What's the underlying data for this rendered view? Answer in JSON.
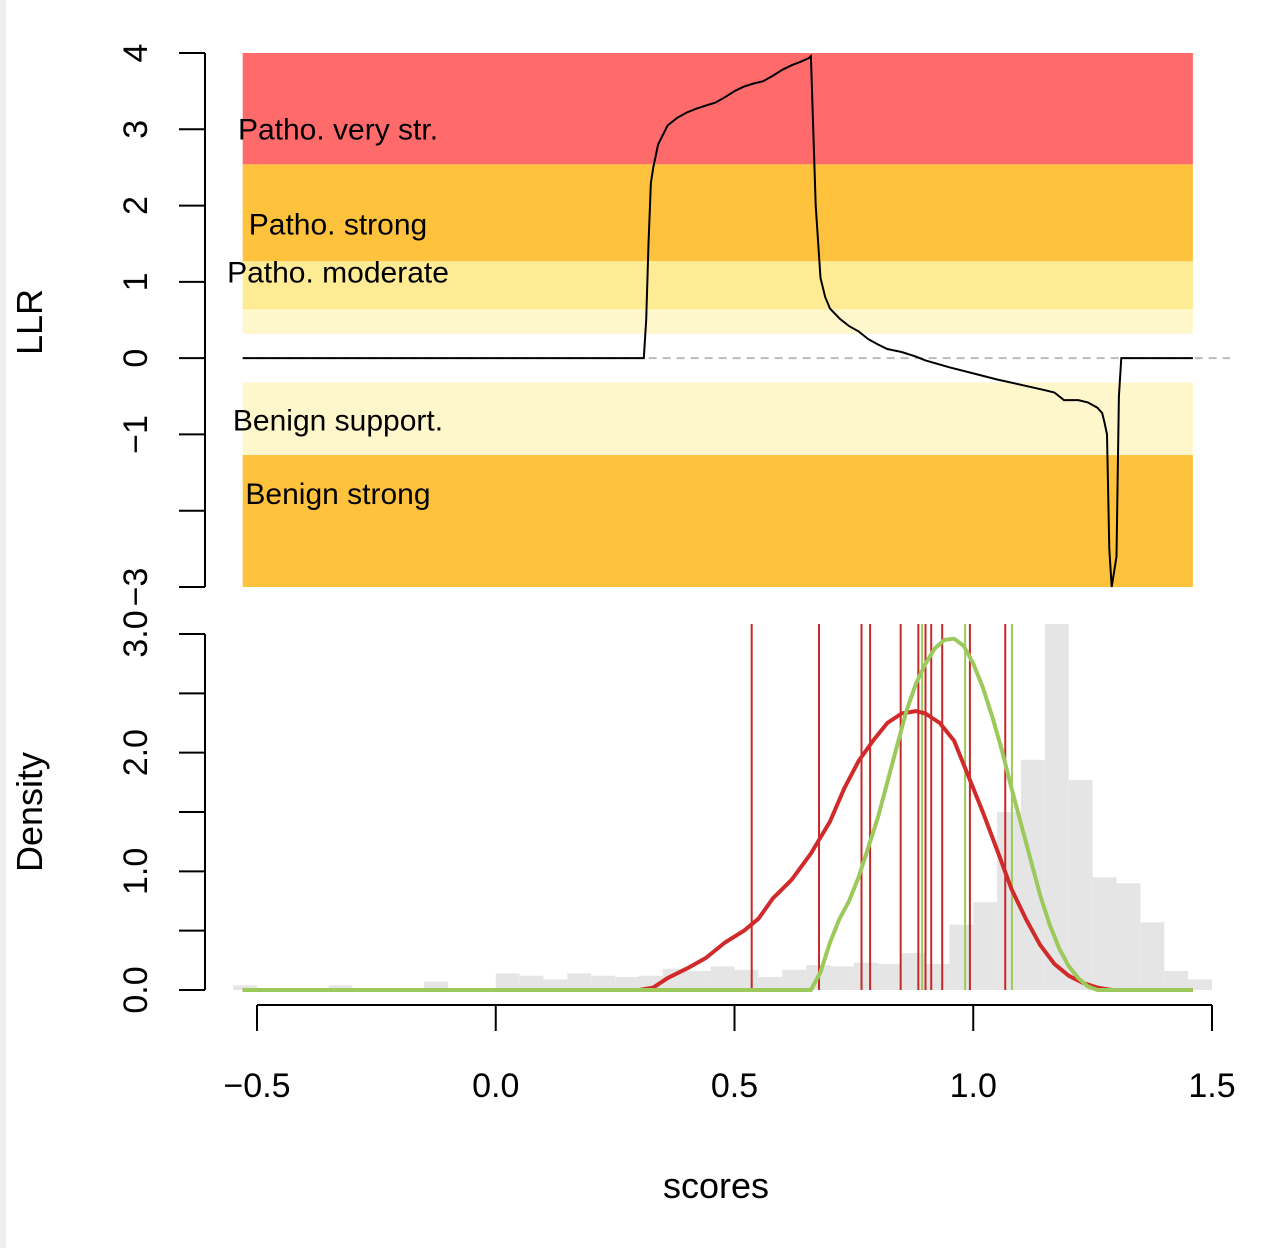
{
  "chart_data": [
    {
      "type": "line",
      "ylabel": "LLR",
      "xlim": [
        -0.55,
        1.5
      ],
      "ylim": [
        -3,
        4
      ],
      "yticks": [
        {
          "value": 4,
          "label": "4"
        },
        {
          "value": 3,
          "label": "3"
        },
        {
          "value": 2,
          "label": "2"
        },
        {
          "value": 1,
          "label": "1"
        },
        {
          "value": 0,
          "label": "0"
        },
        {
          "value": -1,
          "label": "−1"
        },
        {
          "value": -2,
          "label": ""
        },
        {
          "value": -3,
          "label": "−3"
        }
      ],
      "reference_line": {
        "y": 0,
        "style": "dashed",
        "color": "#bbbbbb"
      },
      "bands": [
        {
          "label": "Patho. very str.",
          "from": 2.54,
          "to": 4.0,
          "color": "#ff6b6b",
          "label_y": 3.0
        },
        {
          "label": "Patho. strong",
          "from": 1.27,
          "to": 2.54,
          "color": "#ffc23d",
          "label_y": 1.75
        },
        {
          "label": "Patho. moderate",
          "from": 0.64,
          "to": 1.27,
          "color": "#ffeb94",
          "label_y": 1.12
        },
        {
          "label": "",
          "from": 0.32,
          "to": 0.64,
          "color": "#fff7cc"
        },
        {
          "label": "Benign support.",
          "from": -1.27,
          "to": -0.32,
          "color": "#fff7cc",
          "label_y": -0.82
        },
        {
          "label": "Benign strong",
          "from": -3.0,
          "to": -1.27,
          "color": "#ffc23d",
          "label_y": -1.78
        }
      ],
      "band_x_range": [
        -0.53,
        1.46
      ],
      "series": [
        {
          "color": "#000000",
          "x": [
            -0.53,
            0.31,
            0.315,
            0.32,
            0.325,
            0.33,
            0.34,
            0.36,
            0.38,
            0.4,
            0.42,
            0.44,
            0.46,
            0.48,
            0.5,
            0.52,
            0.54,
            0.56,
            0.58,
            0.6,
            0.62,
            0.64,
            0.655,
            0.66,
            0.67,
            0.68,
            0.69,
            0.7,
            0.72,
            0.74,
            0.76,
            0.78,
            0.8,
            0.82,
            0.85,
            0.88,
            0.9,
            0.95,
            1.0,
            1.05,
            1.1,
            1.15,
            1.17,
            1.19,
            1.2,
            1.22,
            1.24,
            1.26,
            1.27,
            1.275,
            1.28,
            1.285,
            1.29,
            1.3,
            1.305,
            1.31,
            1.46
          ],
          "y": [
            0,
            0,
            0.5,
            1.5,
            2.3,
            2.5,
            2.8,
            3.05,
            3.15,
            3.22,
            3.27,
            3.31,
            3.35,
            3.42,
            3.5,
            3.56,
            3.6,
            3.63,
            3.7,
            3.78,
            3.84,
            3.89,
            3.93,
            3.96,
            2.0,
            1.05,
            0.8,
            0.65,
            0.52,
            0.42,
            0.35,
            0.25,
            0.18,
            0.12,
            0.08,
            0.02,
            -0.03,
            -0.12,
            -0.2,
            -0.28,
            -0.35,
            -0.42,
            -0.45,
            -0.55,
            -0.55,
            -0.55,
            -0.58,
            -0.65,
            -0.72,
            -0.85,
            -1.0,
            -2.5,
            -3.0,
            -2.6,
            -0.5,
            0,
            0
          ]
        }
      ]
    },
    {
      "type": "histogram",
      "xlabel": "scores",
      "ylabel": "Density",
      "xlim": [
        -0.55,
        1.5
      ],
      "ylim": [
        0,
        3.0
      ],
      "xticks": [
        {
          "value": -0.5,
          "label": "−0.5"
        },
        {
          "value": 0.0,
          "label": "0.0"
        },
        {
          "value": 0.5,
          "label": "0.5"
        },
        {
          "value": 1.0,
          "label": "1.0"
        },
        {
          "value": 1.5,
          "label": "1.5"
        }
      ],
      "yticks": [
        {
          "value": 0.0,
          "label": "0.0"
        },
        {
          "value": 0.5,
          "label": ""
        },
        {
          "value": 1.0,
          "label": "1.0"
        },
        {
          "value": 1.5,
          "label": ""
        },
        {
          "value": 2.0,
          "label": "2.0"
        },
        {
          "value": 2.5,
          "label": ""
        },
        {
          "value": 3.0,
          "label": "3.0"
        }
      ],
      "bin_width": 0.05,
      "bins_start": -0.55,
      "bin_values": [
        0.04,
        0.0,
        0.0,
        0.0,
        0.04,
        0.0,
        0.0,
        0.0,
        0.07,
        0.0,
        0.0,
        0.14,
        0.12,
        0.09,
        0.14,
        0.12,
        0.11,
        0.12,
        0.18,
        0.16,
        0.2,
        0.17,
        0.11,
        0.17,
        0.21,
        0.2,
        0.23,
        0.22,
        0.31,
        0.22,
        0.55,
        0.74,
        1.5,
        1.94,
        3.2,
        1.77,
        0.95,
        0.9,
        0.57,
        0.16,
        0.09,
        0.0
      ],
      "hist_color": "#e5e5e5",
      "series": [
        {
          "color": "#d02a2a",
          "x": [
            -0.53,
            0.3,
            0.33,
            0.36,
            0.4,
            0.44,
            0.48,
            0.52,
            0.55,
            0.58,
            0.62,
            0.66,
            0.7,
            0.73,
            0.76,
            0.79,
            0.82,
            0.85,
            0.88,
            0.9,
            0.93,
            0.96,
            0.99,
            1.02,
            1.05,
            1.08,
            1.11,
            1.14,
            1.17,
            1.2,
            1.23,
            1.26,
            1.29,
            1.31,
            1.46
          ],
          "y": [
            0,
            0,
            0.02,
            0.1,
            0.18,
            0.27,
            0.4,
            0.5,
            0.6,
            0.77,
            0.93,
            1.15,
            1.42,
            1.7,
            1.93,
            2.1,
            2.25,
            2.33,
            2.35,
            2.33,
            2.25,
            2.1,
            1.8,
            1.5,
            1.18,
            0.85,
            0.6,
            0.38,
            0.22,
            0.12,
            0.06,
            0.02,
            0.0,
            0.0,
            0.0
          ]
        },
        {
          "color": "#9cc95c",
          "x": [
            -0.53,
            0.66,
            0.68,
            0.7,
            0.72,
            0.74,
            0.76,
            0.78,
            0.8,
            0.82,
            0.84,
            0.86,
            0.88,
            0.9,
            0.92,
            0.94,
            0.96,
            0.98,
            1.0,
            1.02,
            1.04,
            1.06,
            1.08,
            1.1,
            1.12,
            1.14,
            1.16,
            1.18,
            1.2,
            1.22,
            1.24,
            1.26,
            1.28,
            1.3,
            1.32,
            1.46
          ],
          "y": [
            0,
            0,
            0.15,
            0.4,
            0.6,
            0.75,
            0.95,
            1.2,
            1.45,
            1.75,
            2.05,
            2.35,
            2.58,
            2.75,
            2.88,
            2.95,
            2.96,
            2.9,
            2.75,
            2.55,
            2.3,
            2.02,
            1.7,
            1.4,
            1.1,
            0.8,
            0.55,
            0.35,
            0.2,
            0.1,
            0.03,
            0.0,
            0.0,
            0.0,
            0.0,
            0.0
          ]
        }
      ],
      "vlines": [
        {
          "x": 0.536,
          "color": "#c62828"
        },
        {
          "x": 0.677,
          "color": "#c62828"
        },
        {
          "x": 0.766,
          "color": "#c62828"
        },
        {
          "x": 0.784,
          "color": "#c62828"
        },
        {
          "x": 0.848,
          "color": "#c62828"
        },
        {
          "x": 0.885,
          "color": "#c62828"
        },
        {
          "x": 0.893,
          "color": "#9cc95c"
        },
        {
          "x": 0.9,
          "color": "#c62828"
        },
        {
          "x": 0.912,
          "color": "#c62828"
        },
        {
          "x": 0.935,
          "color": "#c62828"
        },
        {
          "x": 0.983,
          "color": "#9cc95c"
        },
        {
          "x": 0.993,
          "color": "#c62828"
        },
        {
          "x": 1.067,
          "color": "#c62828"
        },
        {
          "x": 1.081,
          "color": "#9cc95c"
        }
      ]
    }
  ]
}
